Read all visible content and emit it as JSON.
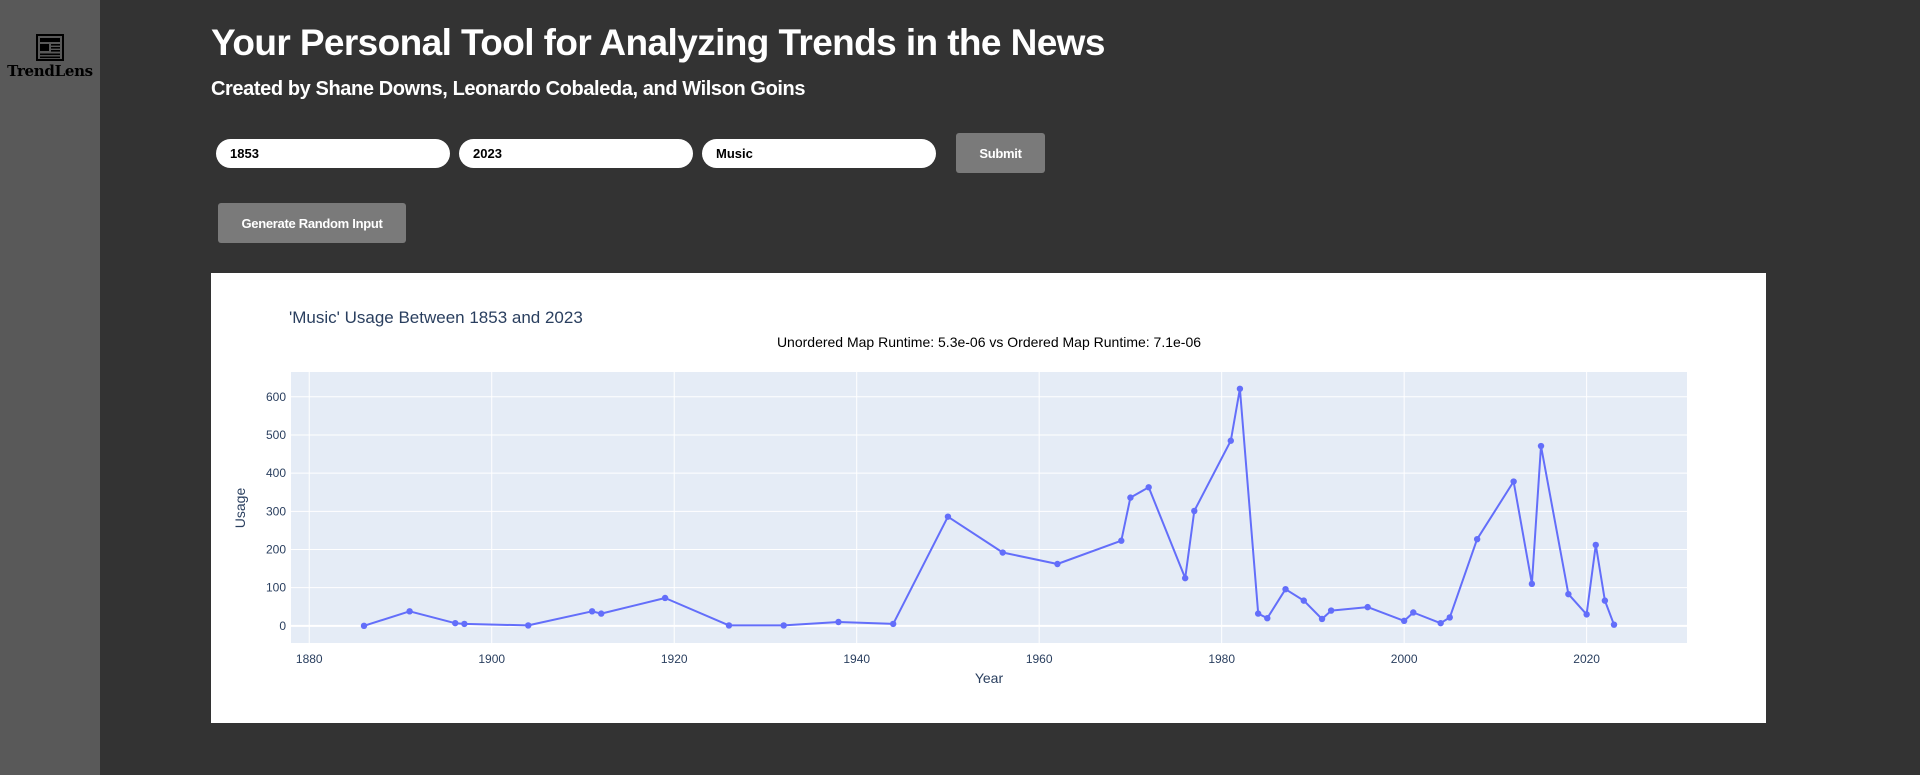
{
  "app": {
    "logo_text": "TrendLens"
  },
  "header": {
    "title": "Your Personal Tool for Analyzing Trends in the News",
    "subtitle": "Created by Shane Downs, Leonardo Cobaleda, and Wilson Goins"
  },
  "form": {
    "start_year": "1853",
    "end_year": "2023",
    "keyword": "Music",
    "submit_label": "Submit",
    "random_label": "Generate Random Input"
  },
  "colors": {
    "background": "#333333",
    "sidebar": "#595959",
    "plot_bg": "#e5ecf6",
    "line": "#636efa"
  },
  "chart_data": {
    "type": "line",
    "title": "'Music' Usage Between 1853 and 2023",
    "annotation": "Unordered Map Runtime: 5.3e-06 vs Ordered Map Runtime: 7.1e-06",
    "xlabel": "Year",
    "ylabel": "Usage",
    "xlim": [
      1878,
      2031
    ],
    "ylim": [
      -45,
      665
    ],
    "xticks": [
      1880,
      1900,
      1920,
      1940,
      1960,
      1980,
      2000,
      2020
    ],
    "yticks": [
      0,
      100,
      200,
      300,
      400,
      500,
      600
    ],
    "grid": true,
    "x": [
      1886,
      1891,
      1896,
      1897,
      1904,
      1911,
      1912,
      1919,
      1926,
      1932,
      1938,
      1944,
      1950,
      1956,
      1962,
      1969,
      1970,
      1972,
      1976,
      1977,
      1981,
      1982,
      1984,
      1985,
      1987,
      1989,
      1991,
      1992,
      1996,
      2000,
      2001,
      2004,
      2005,
      2008,
      2012,
      2014,
      2015,
      2018,
      2020,
      2021,
      2022,
      2023
    ],
    "y": [
      0,
      38,
      7,
      5,
      1,
      38,
      32,
      73,
      1,
      1,
      10,
      5,
      286,
      192,
      162,
      223,
      336,
      363,
      125,
      301,
      485,
      621,
      32,
      20,
      96,
      66,
      18,
      40,
      49,
      13,
      35,
      7,
      22,
      227,
      378,
      110,
      471,
      83,
      30,
      212,
      66,
      3
    ]
  }
}
